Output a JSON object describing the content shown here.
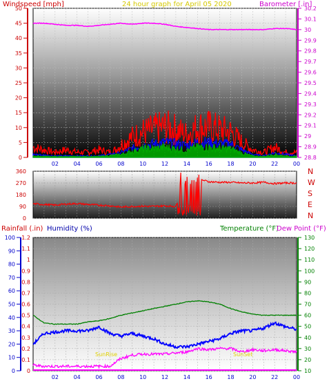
{
  "chart_data": [
    {
      "type": "line",
      "title": "24 hour graph for   April 05 2020",
      "ylabel_left": "Windspeed [mph]",
      "ylabel_right": "Barometer [.in]",
      "x_tick_labels": [
        "02",
        "04",
        "06",
        "08",
        "10",
        "12",
        "14",
        "16",
        "18",
        "20",
        "22",
        "00"
      ],
      "x_range_hours": [
        0,
        24
      ],
      "ylim_left": [
        0,
        50
      ],
      "y_ticks_left": [
        0,
        5,
        10,
        15,
        20,
        25,
        30,
        35,
        40,
        45,
        50
      ],
      "ylim_right": [
        28.8,
        30.2
      ],
      "y_ticks_right": [
        "28.8",
        "28.9",
        "29",
        "29.1",
        "29.2",
        "29.3",
        "29.4",
        "29.5",
        "29.6",
        "29.7",
        "29.8",
        "29.9",
        "30",
        "30.1",
        "30.2"
      ],
      "grid": true,
      "series": [
        {
          "key": "gust",
          "color": "#ff0000",
          "axis": "left",
          "x": [
            0,
            1,
            2,
            3,
            4,
            5,
            6,
            7,
            7.5,
            8,
            9,
            10,
            11,
            12,
            13,
            14,
            15,
            16,
            17,
            18,
            19,
            20,
            21,
            22,
            23,
            24
          ],
          "y": [
            4,
            3,
            2,
            3,
            2,
            2,
            3,
            2,
            3,
            5,
            8,
            10,
            11,
            12,
            11,
            9,
            12,
            12,
            11,
            10,
            6,
            3,
            2,
            4,
            2,
            2
          ]
        },
        {
          "key": "speed",
          "color": "#0000ff",
          "axis": "left",
          "x": [
            0,
            2,
            4,
            6,
            8,
            9,
            10,
            11,
            12,
            13,
            14,
            15,
            16,
            17,
            18,
            19,
            20,
            21,
            22,
            23,
            24
          ],
          "y": [
            1,
            0.5,
            0.5,
            0.5,
            1.5,
            3,
            4,
            4.5,
            5,
            4.5,
            4,
            5,
            5,
            4.5,
            4.5,
            2.5,
            1,
            0.5,
            1.5,
            1,
            0.5
          ]
        },
        {
          "key": "avg",
          "color": "#00aa00",
          "axis": "left",
          "x": [
            0,
            2,
            4,
            6,
            8,
            9,
            10,
            11,
            12,
            13,
            14,
            15,
            16,
            17,
            18,
            19,
            20,
            21,
            22,
            23,
            24
          ],
          "y": [
            0.5,
            0.3,
            0.3,
            0.3,
            1,
            2,
            3,
            3,
            3.5,
            3,
            2.5,
            3.5,
            3.5,
            3,
            3,
            1.5,
            0.5,
            0.3,
            1,
            0.5,
            0.3
          ]
        },
        {
          "key": "barometer",
          "color": "#ff00ff",
          "axis": "right",
          "x": [
            0,
            1,
            2,
            3,
            4,
            5,
            6,
            7,
            8,
            9,
            10,
            11,
            12,
            13,
            14,
            15,
            16,
            17,
            18,
            19,
            20,
            21,
            22,
            23,
            24
          ],
          "y": [
            30.06,
            30.06,
            30.05,
            30.04,
            30.04,
            30.03,
            30.04,
            30.05,
            30.06,
            30.05,
            30.06,
            30.06,
            30.05,
            30.03,
            30.02,
            30.01,
            30.0,
            30.0,
            30.0,
            30.0,
            30.0,
            30.0,
            30.01,
            30.01,
            30.0
          ]
        }
      ]
    },
    {
      "type": "line",
      "ylim": [
        0,
        360
      ],
      "y_ticks": [
        0,
        90,
        180,
        270,
        360
      ],
      "direction_labels": [
        "N",
        "W",
        "S",
        "E",
        "N"
      ],
      "x_range_hours": [
        0,
        24
      ],
      "series": [
        {
          "key": "direction",
          "color": "#ff0000",
          "x": [
            0,
            1,
            2,
            3,
            4,
            5,
            6,
            7,
            8,
            9,
            10,
            11,
            12,
            13,
            13.5,
            14,
            14.5,
            15,
            15.5,
            16,
            17,
            18,
            19,
            20,
            21,
            22,
            23,
            24
          ],
          "y": [
            110,
            105,
            100,
            108,
            112,
            105,
            100,
            95,
            85,
            90,
            92,
            90,
            95,
            90,
            200,
            60,
            310,
            300,
            290,
            280,
            275,
            275,
            270,
            270,
            275,
            265,
            270,
            270
          ]
        }
      ]
    },
    {
      "type": "line",
      "ylabel_left_rain": "Rainfall (.in)",
      "ylabel_left_humidity": "Humidity (%)",
      "ylabel_right_temp": "Temperature (°F)",
      "ylabel_right_dew": "Dew Point (°F)",
      "rain_ticks": [
        "0",
        "0.1",
        "0.2",
        "0.3",
        "0.4",
        "0.5",
        "0.6",
        "0.7",
        "0.8",
        "0.9",
        "1",
        "1.1",
        "1.2"
      ],
      "humidity_ticks": [
        0,
        10,
        20,
        30,
        40,
        50,
        60,
        70,
        80,
        90,
        100
      ],
      "temp_ticks": [
        10,
        20,
        30,
        40,
        50,
        60,
        70,
        80,
        90,
        100,
        110,
        120,
        130
      ],
      "ylim_humidity": [
        0,
        100
      ],
      "ylim_temp": [
        10,
        130
      ],
      "x_range_hours": [
        0,
        24
      ],
      "annotations": {
        "sunrise": "SunRise",
        "sunset": "SunSet"
      },
      "series": [
        {
          "key": "temperature",
          "color": "#008000",
          "axis": "temp",
          "x": [
            0,
            1,
            2,
            3,
            4,
            5,
            6,
            7,
            8,
            9,
            10,
            11,
            12,
            13,
            14,
            15,
            16,
            17,
            18,
            19,
            20,
            21,
            22,
            23,
            24
          ],
          "y": [
            60,
            53,
            52,
            52,
            52,
            54,
            55,
            57,
            60,
            62,
            64,
            66,
            68,
            70,
            72,
            73,
            72,
            70,
            66,
            63,
            61,
            60,
            60,
            60,
            60
          ]
        },
        {
          "key": "humidity",
          "color": "#0000ff",
          "axis": "humidity",
          "x": [
            0,
            1,
            2,
            3,
            4,
            5,
            6,
            7,
            8,
            9,
            10,
            11,
            12,
            13,
            14,
            15,
            16,
            17,
            18,
            19,
            20,
            21,
            22,
            23,
            24
          ],
          "y": [
            20,
            28,
            29,
            30,
            30,
            30,
            33,
            28,
            26,
            28,
            26,
            24,
            20,
            18,
            18,
            20,
            22,
            24,
            28,
            30,
            30,
            32,
            36,
            33,
            31
          ]
        },
        {
          "key": "dewpoint",
          "color": "#ff00ff",
          "axis": "temp",
          "x": [
            0,
            1,
            2,
            3,
            4,
            5,
            6,
            7,
            8,
            9,
            10,
            11,
            12,
            13,
            14,
            15,
            16,
            17,
            18,
            19,
            20,
            21,
            22,
            23,
            24
          ],
          "y": [
            15,
            14,
            14,
            14,
            14,
            14,
            14,
            14,
            21,
            24,
            25,
            25,
            25,
            26,
            27,
            30,
            29,
            30,
            30,
            27,
            29,
            28,
            29,
            28,
            27
          ]
        },
        {
          "key": "rain",
          "color": "#ff00ff",
          "axis": "rain",
          "x": [
            0,
            24
          ],
          "y": [
            0,
            0
          ]
        }
      ]
    }
  ]
}
